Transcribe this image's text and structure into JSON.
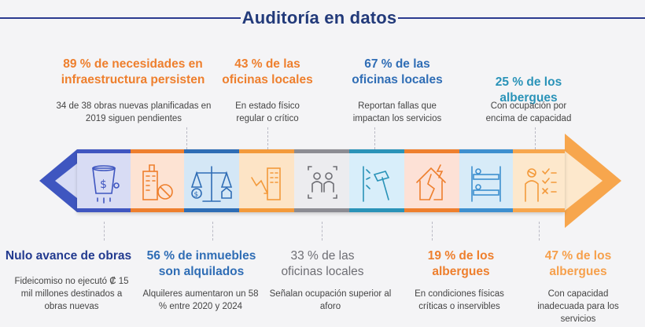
{
  "header": {
    "title": "Auditoría en datos"
  },
  "colors": {
    "navy": "#2b3b8f",
    "orange": "#ee7f2d",
    "blue": "#2f6db5",
    "teal": "#2a93b8",
    "gray": "#6e6e74",
    "peach": "#f6a04c"
  },
  "top_items": [
    {
      "stat": "89 % de necesidades en infraestructura persisten",
      "desc": "34 de 38 obras nuevas planificadas en 2019 siguen pendientes"
    },
    {
      "stat": "43 % de las oficinas locales",
      "desc": "En estado físico regular o crítico"
    },
    {
      "stat": "67 % de las oficinas locales",
      "desc": "Reportan fallas que impactan los servicios"
    },
    {
      "stat": "25 % de los albergues",
      "desc": "Con ocupación por encima de capacidad"
    }
  ],
  "bottom_items": [
    {
      "stat": "Nulo avance de obras",
      "desc": "Fideicomiso no ejecutó ₡ 15 mil millones destinados a obras nuevas"
    },
    {
      "stat": "56 % de inmuebles son alquilados",
      "desc": "Alquileres aumentaron un 58 % entre 2020 y 2024"
    },
    {
      "stat": "33 % de las oficinas locales",
      "desc": "Señalan ocupación superior al aforo"
    },
    {
      "stat": "19 % de los albergues",
      "desc": "En condiciones físicas críticas o inservibles"
    },
    {
      "stat": "47 % de los albergues",
      "desc": "Con capacidad inadecuada para los servicios"
    }
  ],
  "icons": [
    "money-bucket-icon",
    "building-blocked-icon",
    "scale-money-house-icon",
    "building-decline-icon",
    "people-frame-icon",
    "broken-wall-hammer-icon",
    "damaged-house-icon",
    "bunk-bed-icon",
    "person-checklist-icon"
  ],
  "segment_colors": [
    "#d8dcf4",
    "#fde3d3",
    "#d4e7f6",
    "#fde4c6",
    "#ececef",
    "#d8eefa",
    "#fde1d6",
    "#d7ebf8",
    "#fde8cc"
  ]
}
